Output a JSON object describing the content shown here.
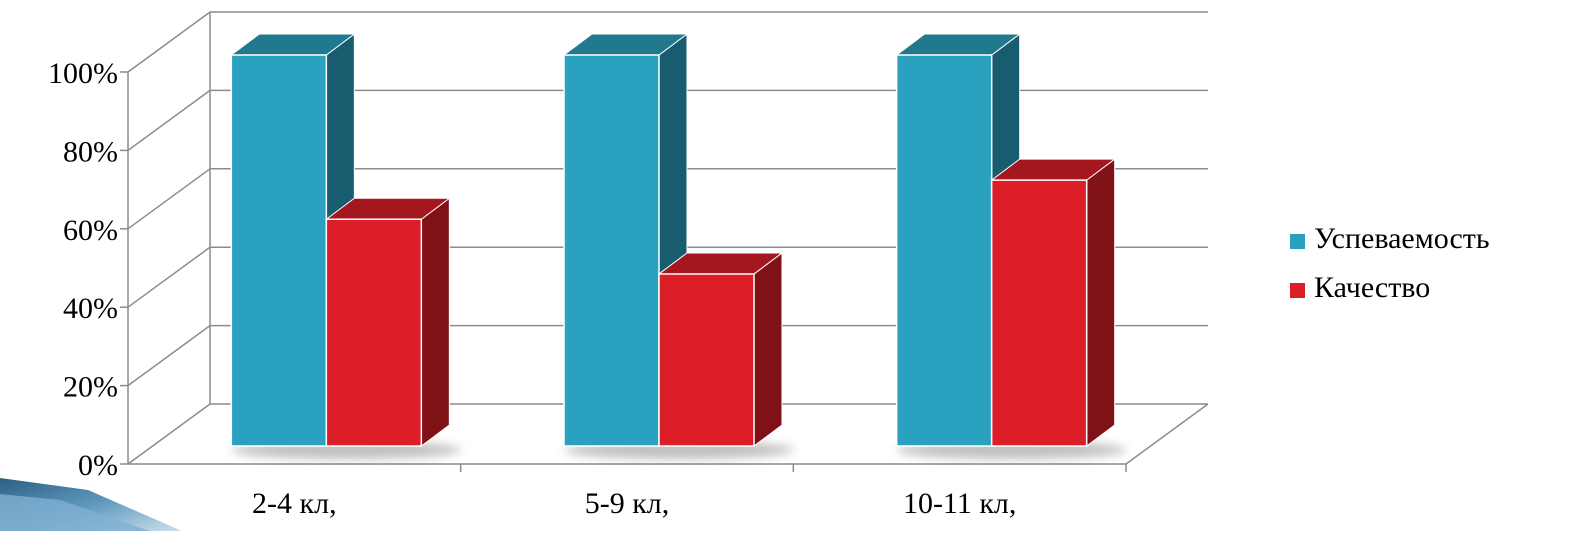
{
  "chart_data": {
    "type": "bar",
    "title": "",
    "xlabel": "",
    "ylabel": "",
    "categories": [
      "2-4 кл,",
      "5-9 кл,",
      "10-11 кл,"
    ],
    "series": [
      {
        "name": "Успеваемость",
        "values": [
          100,
          100,
          100
        ],
        "color": "#2aa1bf"
      },
      {
        "name": "Качество",
        "values": [
          58,
          44,
          68
        ],
        "color": "#dc1e28"
      }
    ],
    "y_ticks": [
      "0%",
      "20%",
      "40%",
      "60%",
      "80%",
      "100%"
    ],
    "ylim": [
      0,
      100
    ],
    "grid": true,
    "legend_position": "right",
    "three_d": true
  }
}
